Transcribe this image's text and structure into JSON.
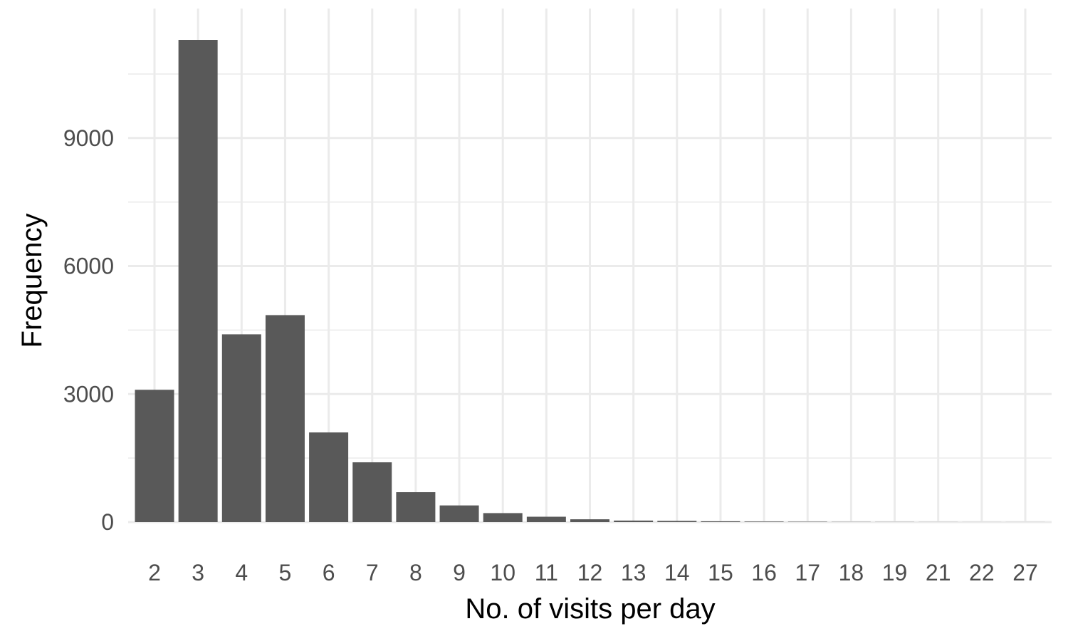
{
  "chart_data": {
    "type": "bar",
    "xlabel": "No. of visits per day",
    "ylabel": "Frequency",
    "categories": [
      "2",
      "3",
      "4",
      "5",
      "6",
      "7",
      "8",
      "9",
      "10",
      "11",
      "12",
      "13",
      "14",
      "15",
      "16",
      "17",
      "18",
      "19",
      "21",
      "22",
      "27"
    ],
    "values": [
      3100,
      11300,
      4400,
      4850,
      2100,
      1400,
      700,
      390,
      210,
      125,
      65,
      35,
      28,
      18,
      12,
      8,
      4,
      3,
      2,
      1,
      1
    ],
    "ylim": [
      0,
      11300
    ],
    "yticks": [
      0,
      3000,
      6000,
      9000
    ],
    "y_minor_ticks": [
      1500,
      4500,
      7500,
      10500
    ],
    "grid": true,
    "legend": "none",
    "colors": {
      "bar": "#595959",
      "grid": "#ebebeb",
      "tick_text": "#4d4d4d",
      "axis_title": "#000000",
      "background": "#ffffff"
    }
  }
}
